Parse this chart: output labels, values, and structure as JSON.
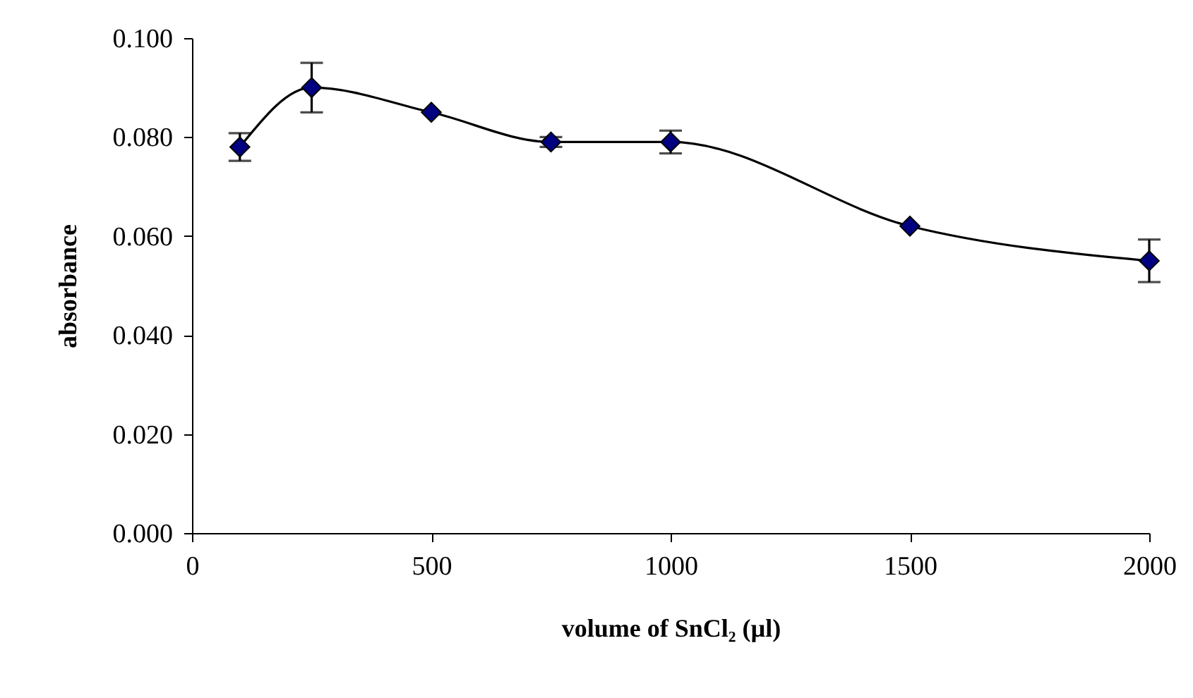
{
  "chart_data": {
    "type": "line",
    "xlabel": "volume of SnCl₂ (µl)",
    "ylabel": "absorbance",
    "x": [
      100,
      250,
      500,
      750,
      1000,
      1500,
      2000
    ],
    "series": [
      {
        "color": "#000080",
        "values": [
          0.078,
          0.09,
          0.085,
          0.079,
          0.079,
          0.062,
          0.055
        ],
        "errors": [
          0.0028,
          0.005,
          null,
          0.001,
          0.0023,
          null,
          0.0043
        ]
      }
    ],
    "xlim": [
      0,
      2000
    ],
    "xticks": [
      0,
      500,
      1000,
      1500,
      2000
    ],
    "ylim": [
      0,
      0.1
    ],
    "yticks": [
      {
        "value": 0,
        "label": "0.000"
      },
      {
        "value": 0.02,
        "label": "0.020"
      },
      {
        "value": 0.04,
        "label": "0.040"
      },
      {
        "value": 0.06,
        "label": "0.060"
      },
      {
        "value": 0.08,
        "label": "0.080"
      },
      {
        "value": 0.1,
        "label": "0.100"
      }
    ],
    "marker": "diamond",
    "line_style": "solid",
    "grid": false
  }
}
